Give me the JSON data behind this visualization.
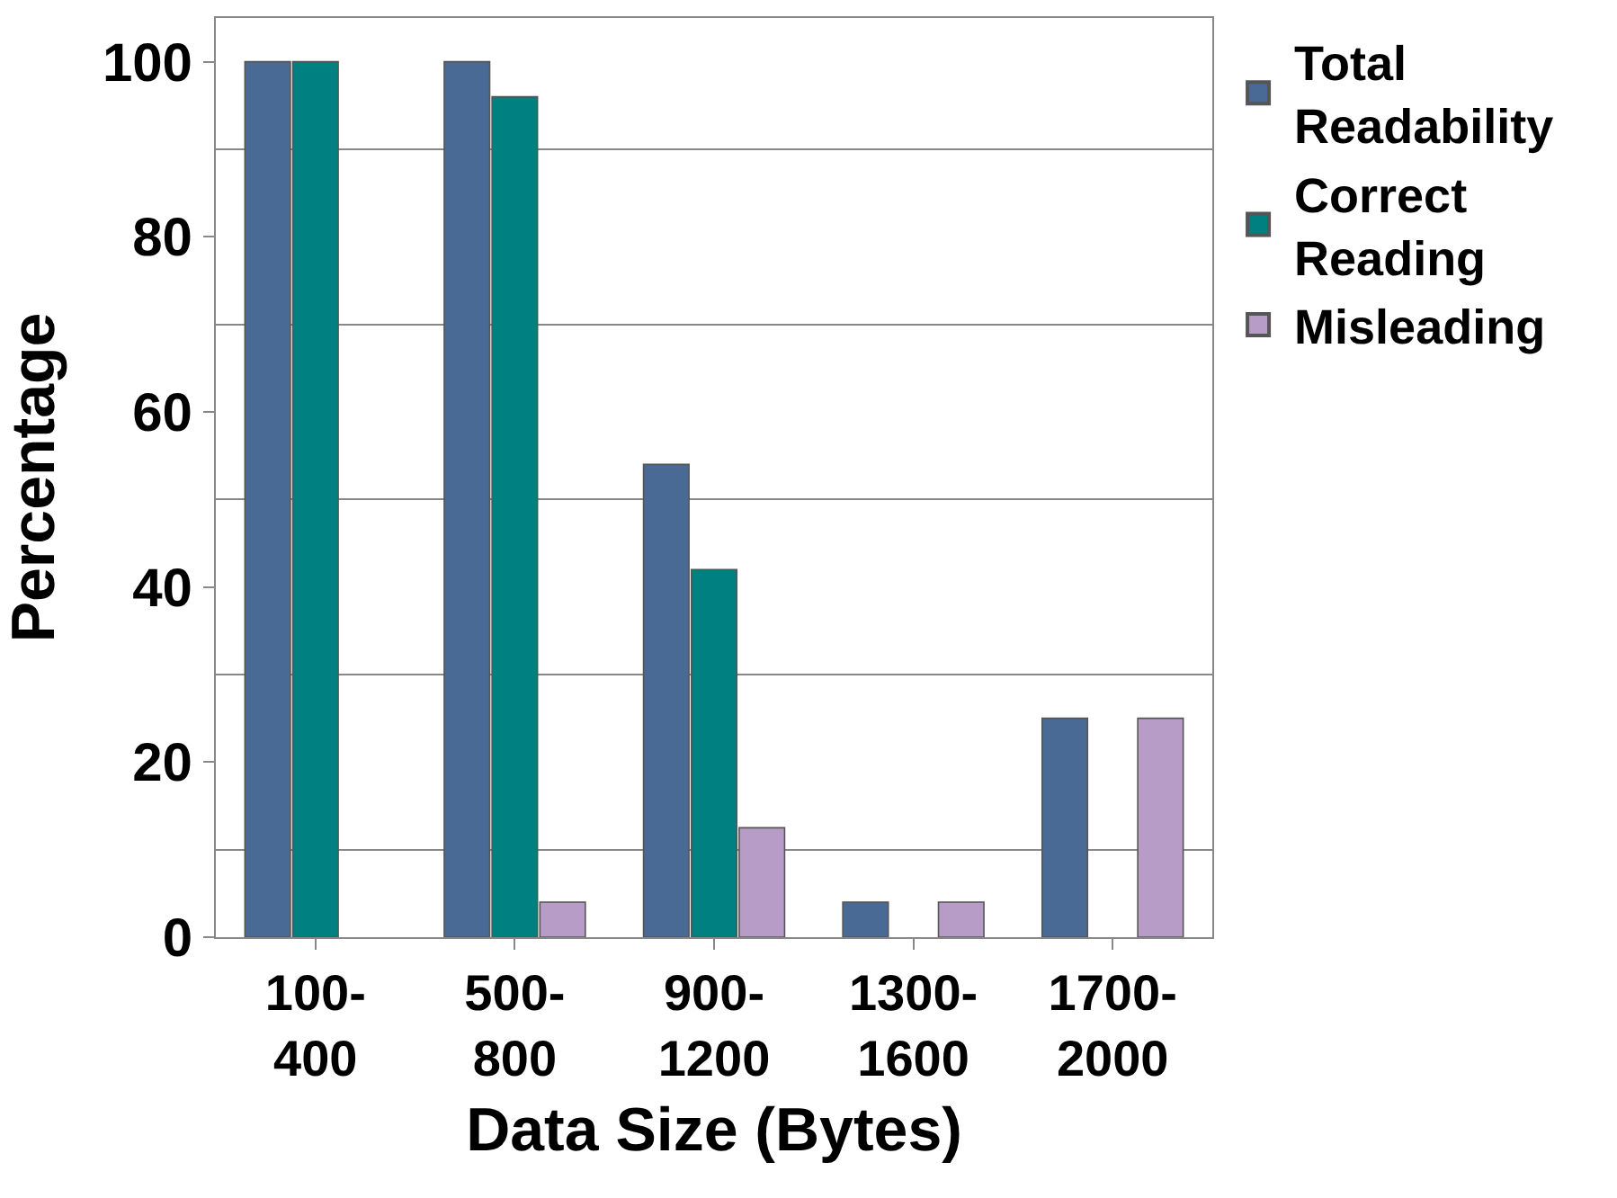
{
  "chart_data": {
    "type": "bar",
    "xlabel": "Data Size (Bytes)",
    "ylabel": "Percentage",
    "categories": [
      "100-400",
      "500-800",
      "900-1200",
      "1300-1600",
      "1700-2000"
    ],
    "series": [
      {
        "name": "Total Readability",
        "color": "#4a6a96",
        "values": [
          100,
          100,
          54,
          4,
          25
        ]
      },
      {
        "name": "Correct Reading",
        "color": "#008080",
        "values": [
          100,
          96,
          42,
          null,
          null
        ]
      },
      {
        "name": "Misleading",
        "color": "#b89cc8",
        "values": [
          null,
          4,
          12.5,
          4,
          25
        ]
      }
    ],
    "ylim": [
      0,
      105
    ],
    "yticks": [
      0,
      {
        "value": 10,
        "label": null
      },
      20,
      {
        "value": 30,
        "label": null
      },
      40,
      {
        "value": 50,
        "label": null
      },
      60,
      {
        "value": 70,
        "label": null
      },
      80,
      {
        "value": 90,
        "label": null
      },
      100
    ],
    "grid": "y",
    "legend": "top right"
  }
}
